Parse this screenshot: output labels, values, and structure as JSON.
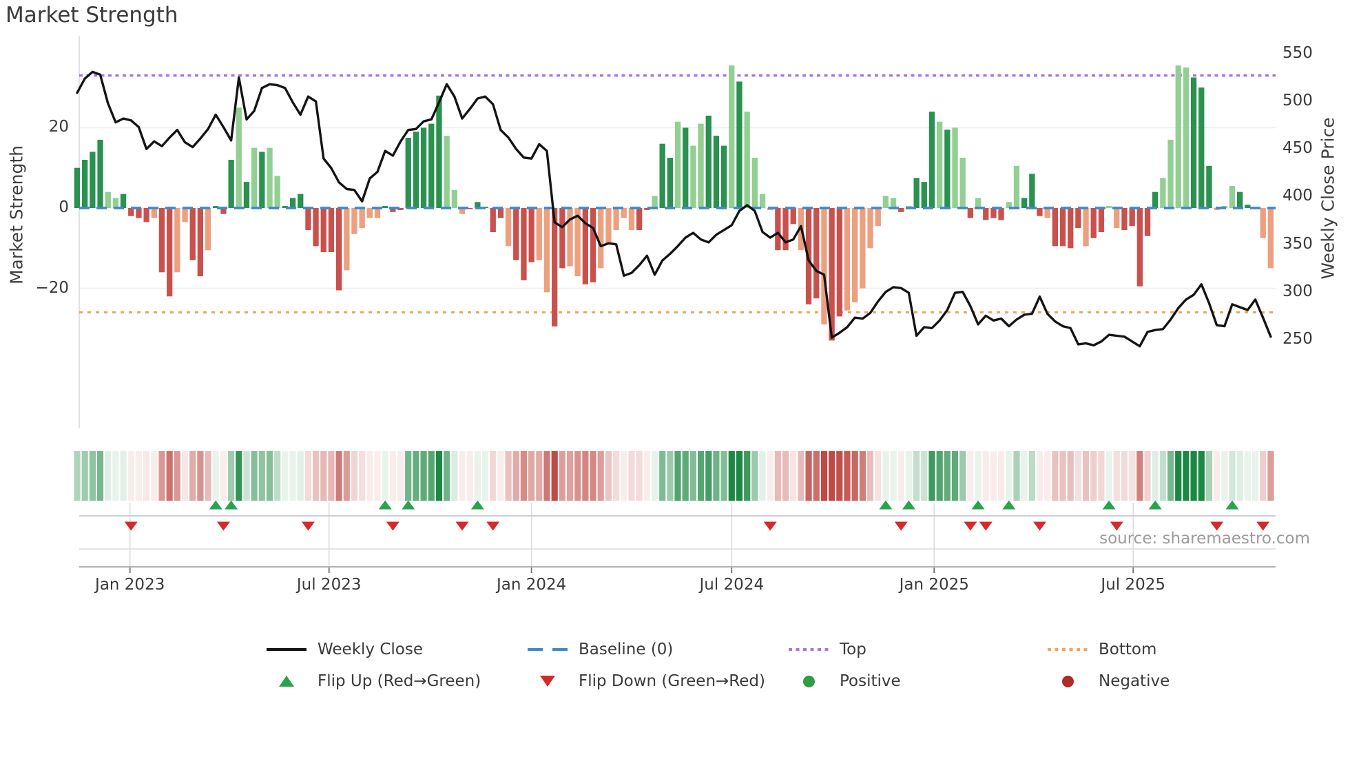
{
  "title": "Market Strength",
  "left_axis": {
    "label": "Market Strength",
    "tick_labels": [
      "20",
      "0",
      "−20"
    ],
    "tick_values": [
      20,
      0,
      -20
    ]
  },
  "right_axis": {
    "label": "Weekly Close Price",
    "tick_labels": [
      "550",
      "500",
      "450",
      "400",
      "350",
      "300",
      "250"
    ],
    "tick_values": [
      550,
      500,
      450,
      400,
      350,
      300,
      250
    ]
  },
  "x_axis": {
    "tick_labels": [
      "Jan 2023",
      "Jul 2023",
      "Jan 2024",
      "Jul 2024",
      "Jan 2025",
      "Jul 2025"
    ],
    "tick_weeks": [
      6.86,
      32.71,
      59.0,
      85.0,
      111.29,
      137.14
    ]
  },
  "source": "source: sharemaestro.com",
  "legend": {
    "weekly_close": "Weekly Close",
    "baseline": "Baseline (0)",
    "top": "Top",
    "bottom": "Bottom",
    "flip_up": "Flip Up (Red→Green)",
    "flip_down": "Flip Down (Green→Red)",
    "positive": "Positive",
    "negative": "Negative"
  },
  "colors": {
    "bar_positive_dark": "#2a9150",
    "bar_positive_light": "#92cf92",
    "bar_negative_dark": "#c9514d",
    "bar_negative_light": "#eda080",
    "price_line": "#141414",
    "baseline_line": "#4289c7",
    "top_line": "#a678dd",
    "bottom_line": "#f2a65a",
    "flip_up": "#2aa34e",
    "flip_down": "#d42a2a",
    "positive_dot": "#2f9e41",
    "negative_dot": "#b02a28",
    "heatmap_green": "#1d8843",
    "heatmap_red": "#bf4a45",
    "grid": "#ececf2",
    "spine": "#d8d8e0",
    "panel_zero_line": "#c8c8d0",
    "panel_grid": "#dcdce2",
    "axis_line": "#b0b0b8",
    "tick_mark": "#707070"
  },
  "chart_data": {
    "type": "bar+line+heatmap",
    "title": "Market Strength",
    "x_start": "mid-Nov 2022",
    "x_end": "mid-Nov 2025",
    "frequency": "weekly",
    "n_weeks": 156,
    "strength_axis": {
      "label": "Market Strength",
      "ticks": [
        20,
        0,
        -20
      ],
      "range_hint": [
        -40,
        42
      ]
    },
    "price_axis": {
      "label": "Weekly Close Price",
      "ticks": [
        550,
        500,
        450,
        400,
        350,
        300,
        250
      ]
    },
    "baseline": 0,
    "top_threshold": 33,
    "bottom_threshold": -26,
    "strength_values": [
      10,
      12,
      14,
      17,
      4,
      2.5,
      3.5,
      -2,
      -2.5,
      -3.5,
      -2.5,
      -16,
      -22,
      -16,
      -3.5,
      -13,
      -17,
      -10.5,
      0.5,
      -1.5,
      12,
      25,
      6.5,
      15,
      14,
      15,
      8,
      0.5,
      2.5,
      3.5,
      -5.5,
      -9.5,
      -11,
      -11,
      -20.5,
      -15.5,
      -6.5,
      -5,
      -2.5,
      -2.5,
      0.5,
      -1,
      -0.5,
      17.5,
      19,
      20,
      21,
      28,
      18,
      4.5,
      -1.5,
      -0.3,
      1.5,
      0.3,
      -6,
      -2.5,
      -9.5,
      -13,
      -18,
      -13.5,
      -13,
      -21,
      -29.5,
      -15,
      -14.5,
      -17,
      -19,
      -18.5,
      -15,
      -9,
      -5.5,
      -2.5,
      -5.5,
      -5.5,
      -0.5,
      3,
      16,
      12.5,
      21.5,
      20,
      15.5,
      21,
      23,
      18,
      15.5,
      35.5,
      31.5,
      24,
      12.5,
      3.5,
      -0.5,
      -10.5,
      -10.5,
      -4,
      -10.5,
      -24,
      -22.5,
      -29,
      -33,
      -27,
      -25.5,
      -23.5,
      -20,
      -10,
      -4.5,
      3,
      2.5,
      -1,
      0.5,
      7.5,
      6.5,
      24,
      21.5,
      19.5,
      20,
      12.5,
      -2.5,
      2.5,
      -3,
      -2.5,
      -3,
      1.5,
      10.5,
      2.5,
      8.5,
      -2,
      -2.5,
      -9.5,
      -9.5,
      -10,
      -5,
      -9.5,
      -7.5,
      -6,
      0.5,
      -5,
      -5.5,
      -4.5,
      -19.5,
      -7,
      4,
      7.5,
      17,
      35.5,
      35,
      32.5,
      30,
      10.5,
      -0.5,
      0.5,
      5.5,
      4,
      0.8,
      0.3,
      -7.5,
      -15
    ],
    "bar_shade": "ddddllddddlddllddldddldldllddddddddlllllddddddddllldddddldddllddlldd lllllddlddldlldddldllllddd lddlddllllll ldldddldlldldddllddd lddddlddlldddddlllldddllldd",
    "weekly_close_values": [
      509,
      524,
      531,
      528,
      498,
      478,
      482,
      480,
      473,
      450,
      458,
      453,
      462,
      470,
      457,
      452,
      461,
      471,
      486,
      473,
      459,
      525,
      481,
      490,
      514,
      518,
      517,
      514,
      499,
      486,
      505,
      500,
      440,
      430,
      415,
      408,
      407,
      395,
      419,
      426,
      448,
      443,
      458,
      470,
      471,
      479,
      481,
      499,
      518,
      505,
      482,
      492,
      503,
      505,
      497,
      470,
      462,
      450,
      441,
      440,
      455,
      448,
      373,
      368,
      376,
      380,
      372,
      367,
      348,
      351,
      350,
      317,
      320,
      328,
      338,
      318,
      333,
      340,
      348,
      357,
      362,
      355,
      352,
      360,
      365,
      370,
      385,
      391,
      385,
      363,
      357,
      362,
      352,
      355,
      369,
      333,
      322,
      318,
      252,
      257,
      263,
      273,
      272,
      278,
      290,
      300,
      305,
      304,
      299,
      254,
      263,
      262,
      270,
      281,
      299,
      300,
      285,
      266,
      275,
      270,
      272,
      264,
      271,
      276,
      277,
      295,
      277,
      269,
      264,
      262,
      245,
      246,
      244,
      248,
      255,
      254,
      253,
      248,
      243,
      258,
      260,
      261,
      271,
      283,
      292,
      297,
      308,
      288,
      265,
      264,
      287,
      284,
      281,
      292,
      273,
      253
    ],
    "flip_up_weeks": [
      18,
      20,
      40,
      43,
      52,
      105,
      108,
      117,
      121,
      134,
      140,
      150
    ],
    "flip_down_weeks": [
      7,
      19,
      30,
      41,
      50,
      54,
      90,
      107,
      116,
      118,
      125,
      135,
      148,
      154
    ],
    "heatmap": "per-week shade strip: green intensity for positive strength, red intensity for negative strength",
    "legend_position": "bottom-center",
    "grid": "horizontal lines at strength ticks; vertical date gridlines in lower marker panel"
  }
}
